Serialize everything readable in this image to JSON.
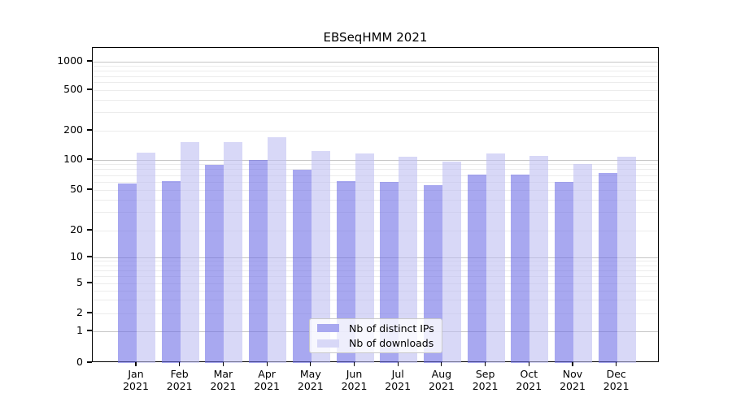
{
  "chart_data": {
    "type": "bar",
    "title": "EBSeqHMM 2021",
    "xlabel": "",
    "ylabel": "",
    "yscale": "log-with-zero",
    "ylim": [
      0,
      1000
    ],
    "yticks": [
      0,
      1,
      2,
      5,
      10,
      20,
      50,
      100,
      200,
      500,
      1000
    ],
    "ytick_labels": [
      "0",
      "1",
      "2",
      "5",
      "10",
      "20",
      "50",
      "100",
      "200",
      "500",
      "1000"
    ],
    "categories": [
      "Jan 2021",
      "Feb 2021",
      "Mar 2021",
      "Apr 2021",
      "May 2021",
      "Jun 2021",
      "Jul 2021",
      "Aug 2021",
      "Sep 2021",
      "Oct 2021",
      "Nov 2021",
      "Dec 2021"
    ],
    "grid": true,
    "legend_position": "lower center",
    "series": [
      {
        "name": "Nb of distinct IPs",
        "color": "#a8a8f0",
        "values": [
          58,
          62,
          90,
          100,
          80,
          61,
          60,
          56,
          71,
          72,
          60,
          74
        ]
      },
      {
        "name": "Nb of downloads",
        "color": "#d8d8f7",
        "values": [
          119,
          152,
          152,
          172,
          123,
          117,
          109,
          96,
          117,
          110,
          91,
          107
        ]
      }
    ]
  },
  "colors": {
    "background": "#ffffff",
    "axis": "#000000",
    "grid_major": "#c6c6c6",
    "grid_minor": "#ececec",
    "legend_border": "#c9c9c9",
    "text": "#000000"
  }
}
